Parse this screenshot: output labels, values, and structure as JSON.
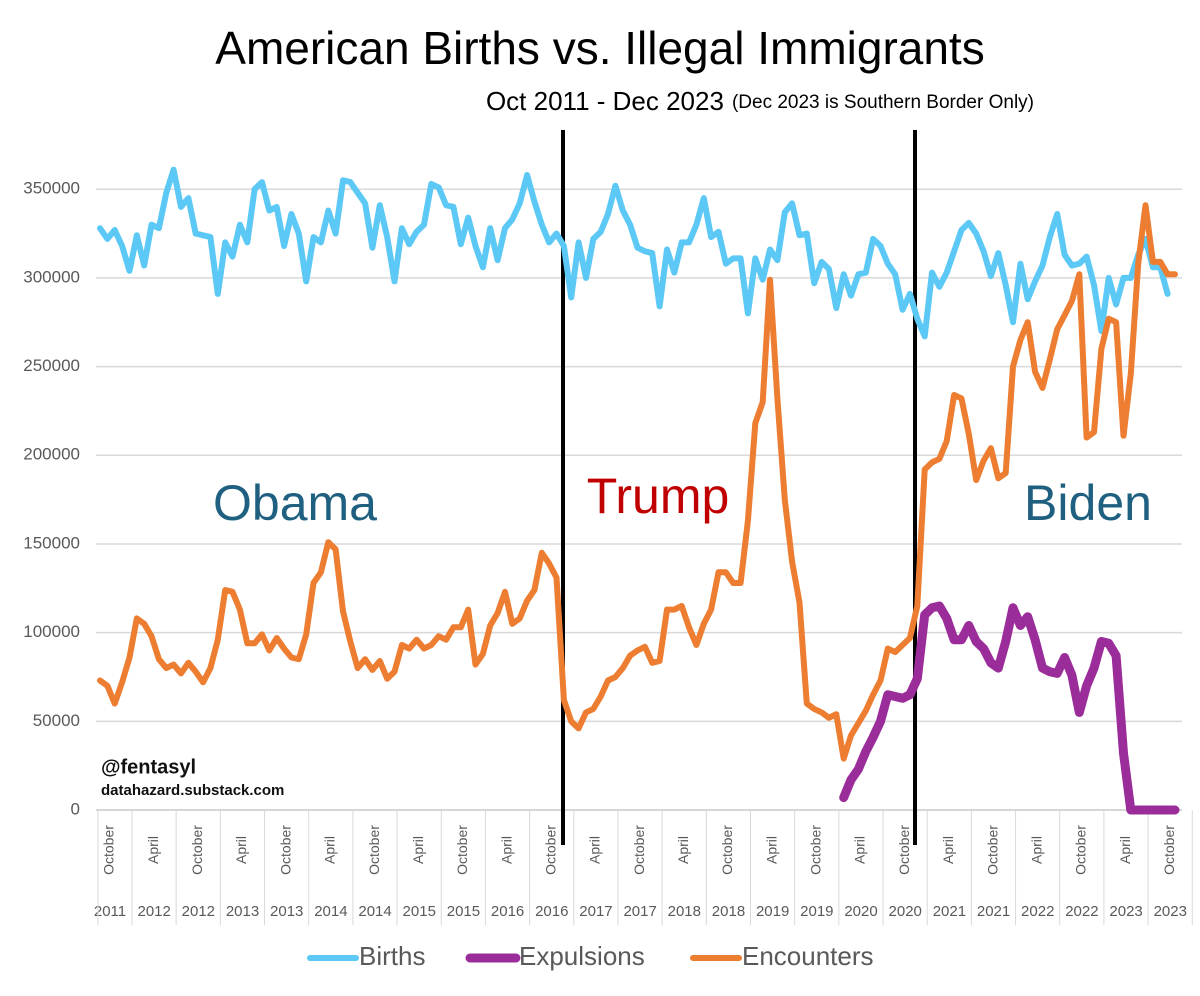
{
  "chart_data": {
    "type": "line",
    "title": "American Births vs. Illegal Immigrants",
    "subtitle": "Oct 2011 - Dec 2023",
    "subtitle_note": "(Dec 2023 is Southern Border Only)",
    "annotations": [
      {
        "text": "Obama",
        "color": "#1f6080"
      },
      {
        "text": "Trump",
        "color": "#c00000"
      },
      {
        "text": "Biden",
        "color": "#1f6080"
      }
    ],
    "credit": "@fentasyl",
    "credit_url": "datahazard.substack.com",
    "categories": [
      "October",
      null,
      null,
      null,
      null,
      null,
      "April",
      null,
      null,
      null,
      null,
      null,
      "October",
      null,
      null,
      null,
      null,
      null,
      "April",
      null,
      null,
      null,
      null,
      null,
      "October",
      null,
      null,
      null,
      null,
      null,
      "April",
      null,
      null,
      null,
      null,
      null,
      "October",
      null,
      null,
      null,
      null,
      null,
      "April",
      null,
      null,
      null,
      null,
      null,
      "October",
      null,
      null,
      null,
      null,
      null,
      "April",
      null,
      null,
      null,
      null,
      null,
      "October",
      null,
      null,
      null,
      null,
      null,
      "April",
      null,
      null,
      null,
      null,
      null,
      "October",
      null,
      null,
      null,
      null,
      null,
      "April",
      null,
      null,
      null,
      null,
      null,
      "October",
      null,
      null,
      null,
      null,
      null,
      "April",
      null,
      null,
      null,
      null,
      null,
      "October",
      null,
      null,
      null,
      null,
      null,
      "April",
      null,
      null,
      null,
      null,
      null,
      "October",
      null,
      null,
      null,
      null,
      null,
      "April",
      null,
      null,
      null,
      null,
      null,
      "October",
      null,
      null,
      null,
      null,
      null,
      "April",
      null,
      null,
      null,
      null,
      null,
      "October",
      null,
      null,
      null,
      null,
      null,
      "April",
      null,
      null,
      null,
      null,
      null,
      "October",
      null,
      null
    ],
    "category_years": [
      "2011",
      null,
      null,
      null,
      null,
      null,
      "2012",
      null,
      null,
      null,
      null,
      null,
      "2012",
      null,
      null,
      null,
      null,
      null,
      "2013",
      null,
      null,
      null,
      null,
      null,
      "2013",
      null,
      null,
      null,
      null,
      null,
      "2014",
      null,
      null,
      null,
      null,
      null,
      "2014",
      null,
      null,
      null,
      null,
      null,
      "2015",
      null,
      null,
      null,
      null,
      null,
      "2015",
      null,
      null,
      null,
      null,
      null,
      "2016",
      null,
      null,
      null,
      null,
      null,
      "2016",
      null,
      null,
      null,
      null,
      null,
      "2017",
      null,
      null,
      null,
      null,
      null,
      "2017",
      null,
      null,
      null,
      null,
      null,
      "2018",
      null,
      null,
      null,
      null,
      null,
      "2018",
      null,
      null,
      null,
      null,
      null,
      "2019",
      null,
      null,
      null,
      null,
      null,
      "2019",
      null,
      null,
      null,
      null,
      null,
      "2020",
      null,
      null,
      null,
      null,
      null,
      "2020",
      null,
      null,
      null,
      null,
      null,
      "2021",
      null,
      null,
      null,
      null,
      null,
      "2021",
      null,
      null,
      null,
      null,
      null,
      "2022",
      null,
      null,
      null,
      null,
      null,
      "2022",
      null,
      null,
      null,
      null,
      null,
      "2023",
      null,
      null,
      null,
      null,
      null,
      "2023",
      null,
      null
    ],
    "series": [
      {
        "name": "Births",
        "color": "#5bc8f5",
        "values": [
          328000,
          322000,
          327000,
          318000,
          304000,
          324000,
          307000,
          330000,
          328000,
          348000,
          361000,
          340000,
          345000,
          325000,
          324000,
          323000,
          291000,
          320000,
          312000,
          330000,
          320000,
          350000,
          354000,
          338000,
          340000,
          318000,
          336000,
          325000,
          298000,
          323000,
          320000,
          338000,
          325000,
          355000,
          354000,
          348000,
          342000,
          317000,
          341000,
          323000,
          298000,
          328000,
          319000,
          326000,
          330000,
          353000,
          351000,
          341000,
          340000,
          319000,
          334000,
          318000,
          306000,
          328000,
          310000,
          328000,
          333000,
          342000,
          358000,
          343000,
          330000,
          320000,
          325000,
          318000,
          289000,
          320000,
          300000,
          322000,
          326000,
          336000,
          352000,
          338000,
          330000,
          317000,
          315000,
          314000,
          284000,
          316000,
          303000,
          320000,
          320000,
          330000,
          345000,
          323000,
          326000,
          308000,
          311000,
          311000,
          280000,
          311000,
          299000,
          316000,
          310000,
          337000,
          342000,
          324000,
          325000,
          297000,
          309000,
          305000,
          283000,
          302000,
          290000,
          302000,
          303000,
          322000,
          318000,
          308000,
          302000,
          282000,
          291000,
          277000,
          267000,
          303000,
          295000,
          303000,
          315000,
          327000,
          331000,
          325000,
          315000,
          301000,
          314000,
          296000,
          275000,
          308000,
          288000,
          298000,
          307000,
          323000,
          336000,
          313000,
          307000,
          308000,
          312000,
          296000,
          270000,
          300000,
          285000,
          300000,
          300000,
          313000,
          322000,
          306000,
          306000,
          291000,
          null
        ]
      },
      {
        "name": "Expulsions",
        "color": "#9b2d9b",
        "values": [
          null,
          null,
          null,
          null,
          null,
          null,
          null,
          null,
          null,
          null,
          null,
          null,
          null,
          null,
          null,
          null,
          null,
          null,
          null,
          null,
          null,
          null,
          null,
          null,
          null,
          null,
          null,
          null,
          null,
          null,
          null,
          null,
          null,
          null,
          null,
          null,
          null,
          null,
          null,
          null,
          null,
          null,
          null,
          null,
          null,
          null,
          null,
          null,
          null,
          null,
          null,
          null,
          null,
          null,
          null,
          null,
          null,
          null,
          null,
          null,
          null,
          null,
          null,
          null,
          null,
          null,
          null,
          null,
          null,
          null,
          null,
          null,
          null,
          null,
          null,
          null,
          null,
          null,
          null,
          null,
          null,
          null,
          null,
          null,
          null,
          null,
          null,
          null,
          null,
          null,
          null,
          null,
          null,
          null,
          null,
          null,
          null,
          null,
          null,
          null,
          null,
          7000,
          17000,
          23000,
          33000,
          41000,
          50000,
          65000,
          64000,
          63000,
          65000,
          74000,
          110000,
          114000,
          115000,
          108000,
          96000,
          96000,
          104000,
          95000,
          91000,
          83000,
          80000,
          95000,
          114000,
          104000,
          109000,
          96000,
          80000,
          78000,
          77000,
          86000,
          76000,
          55000,
          70000,
          80000,
          95000,
          94000,
          87000,
          32000,
          0,
          0,
          0,
          0,
          0,
          0,
          0
        ]
      },
      {
        "name": "Encounters",
        "color": "#ed7d31",
        "values": [
          73000,
          70000,
          60000,
          72000,
          86000,
          108000,
          105000,
          98000,
          85000,
          80000,
          82000,
          77000,
          83000,
          78000,
          72000,
          80000,
          96000,
          124000,
          123000,
          113000,
          94000,
          94000,
          99000,
          90000,
          97000,
          91000,
          86000,
          85000,
          99000,
          128000,
          134000,
          151000,
          147000,
          112000,
          95000,
          80000,
          85000,
          79000,
          84000,
          74000,
          78000,
          93000,
          91000,
          96000,
          91000,
          93000,
          98000,
          96000,
          103000,
          103000,
          113000,
          82000,
          88000,
          104000,
          111000,
          123000,
          105000,
          108000,
          118000,
          124000,
          145000,
          139000,
          131000,
          62000,
          50000,
          46000,
          55000,
          57000,
          64000,
          73000,
          75000,
          80000,
          87000,
          90000,
          92000,
          83000,
          84000,
          113000,
          113000,
          115000,
          103000,
          93000,
          105000,
          113000,
          134000,
          134000,
          128000,
          128000,
          163000,
          218000,
          230000,
          299000,
          232000,
          175000,
          140000,
          117000,
          60000,
          57000,
          55000,
          52000,
          54000,
          29000,
          42000,
          49000,
          56000,
          65000,
          73000,
          91000,
          89000,
          93000,
          97000,
          115000,
          192000,
          196000,
          198000,
          208000,
          234000,
          232000,
          212000,
          186000,
          197000,
          204000,
          187000,
          190000,
          250000,
          265000,
          275000,
          247000,
          238000,
          254000,
          271000,
          279000,
          287000,
          302000,
          210000,
          213000,
          260000,
          277000,
          275000,
          211000,
          246000,
          308000,
          341000,
          309000,
          309000,
          302000,
          302000
        ]
      }
    ],
    "ylim": [
      0,
      380000
    ],
    "yticks": [
      0,
      50000,
      100000,
      150000,
      200000,
      250000,
      300000,
      350000
    ],
    "grid": true,
    "legend": "bottom"
  }
}
